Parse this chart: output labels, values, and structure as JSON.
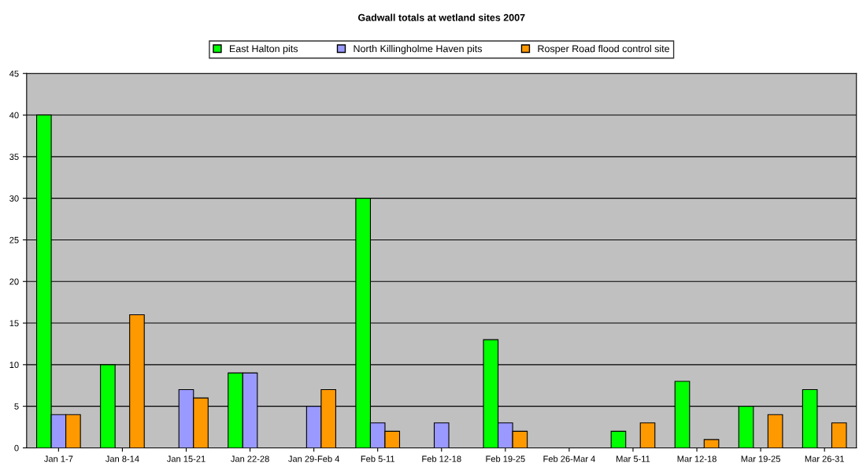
{
  "chart_data": {
    "type": "bar",
    "title": "Gadwall totals at wetland sites 2007",
    "categories": [
      "Jan 1-7",
      "Jan 8-14",
      "Jan 15-21",
      "Jan 22-28",
      "Jan 29-Feb 4",
      "Feb 5-11",
      "Feb 12-18",
      "Feb 19-25",
      "Feb 26-Mar 4",
      "Mar 5-11",
      "Mar 12-18",
      "Mar 19-25",
      "Mar 26-31"
    ],
    "series": [
      {
        "name": "East Halton pits",
        "color": "#00ff00",
        "values": [
          40,
          10,
          null,
          9,
          null,
          30,
          null,
          13,
          null,
          2,
          8,
          5,
          7
        ]
      },
      {
        "name": "North Killingholme Haven pits",
        "color": "#9999ff",
        "values": [
          4,
          null,
          7,
          9,
          5,
          3,
          3,
          3,
          null,
          null,
          null,
          null,
          null
        ]
      },
      {
        "name": "Rosper Road flood control site",
        "color": "#ff9900",
        "values": [
          4,
          16,
          6,
          null,
          7,
          2,
          null,
          2,
          null,
          3,
          1,
          4,
          3
        ]
      }
    ],
    "ylim": [
      0,
      45
    ],
    "yticks": [
      0,
      5,
      10,
      15,
      20,
      25,
      30,
      35,
      40,
      45
    ],
    "grid": "y",
    "legend": "top"
  }
}
